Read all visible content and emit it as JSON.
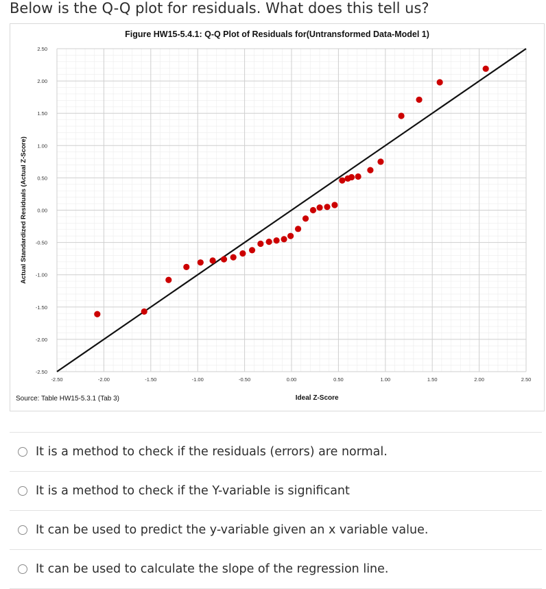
{
  "question": "Below is the Q-Q plot for residuals. What does this tell us?",
  "figure": {
    "source": "Source: Table HW15-5.3.1 (Tab 3)"
  },
  "options": [
    {
      "label": "It is a method to check if the residuals (errors) are normal."
    },
    {
      "label": "It is a method to check if the Y-variable is significant"
    },
    {
      "label": "It can be used to predict the y-variable given an x variable value."
    },
    {
      "label": "It can be used to calculate the slope of the regression line."
    }
  ],
  "chart_data": {
    "type": "scatter",
    "title": "Figure HW15-5.4.1: Q-Q Plot of Residuals for(Untransformed Data-Model 1)",
    "xlabel": "Ideal Z-Score",
    "ylabel": "Actual Standardized Residuals (Actual Z-Score)",
    "xlim": [
      -2.5,
      2.5
    ],
    "ylim": [
      -2.5,
      2.5
    ],
    "xticks": [
      "-2.50",
      "-2.00",
      "-1.50",
      "-1.00",
      "-0.50",
      "0.00",
      "0.50",
      "1.00",
      "1.50",
      "2.00",
      "2.50"
    ],
    "yticks": [
      "2.50",
      "2.00",
      "1.50",
      "1.00",
      "0.50",
      "0.00",
      "-0.50",
      "-1.00",
      "-1.50",
      "-2.00",
      "-2.50"
    ],
    "grid": true,
    "reference_line": {
      "x": [
        -2.5,
        2.5
      ],
      "y": [
        -2.5,
        2.5
      ],
      "color": "#111111"
    },
    "point_color": "#cc0000",
    "points": [
      {
        "x": -2.07,
        "y": -1.61
      },
      {
        "x": -1.57,
        "y": -1.57
      },
      {
        "x": -1.31,
        "y": -1.08
      },
      {
        "x": -1.12,
        "y": -0.88
      },
      {
        "x": -0.97,
        "y": -0.81
      },
      {
        "x": -0.84,
        "y": -0.78
      },
      {
        "x": -0.72,
        "y": -0.76
      },
      {
        "x": -0.62,
        "y": -0.73
      },
      {
        "x": -0.52,
        "y": -0.67
      },
      {
        "x": -0.42,
        "y": -0.62
      },
      {
        "x": -0.33,
        "y": -0.52
      },
      {
        "x": -0.24,
        "y": -0.49
      },
      {
        "x": -0.16,
        "y": -0.47
      },
      {
        "x": -0.08,
        "y": -0.45
      },
      {
        "x": -0.01,
        "y": -0.4
      },
      {
        "x": 0.07,
        "y": -0.29
      },
      {
        "x": 0.15,
        "y": -0.13
      },
      {
        "x": 0.23,
        "y": 0.0
      },
      {
        "x": 0.3,
        "y": 0.04
      },
      {
        "x": 0.38,
        "y": 0.05
      },
      {
        "x": 0.46,
        "y": 0.08
      },
      {
        "x": 0.54,
        "y": 0.46
      },
      {
        "x": 0.6,
        "y": 0.49
      },
      {
        "x": 0.64,
        "y": 0.51
      },
      {
        "x": 0.71,
        "y": 0.52
      },
      {
        "x": 0.84,
        "y": 0.62
      },
      {
        "x": 0.95,
        "y": 0.75
      },
      {
        "x": 1.17,
        "y": 1.46
      },
      {
        "x": 1.36,
        "y": 1.71
      },
      {
        "x": 1.58,
        "y": 1.98
      },
      {
        "x": 2.07,
        "y": 2.19
      }
    ]
  }
}
